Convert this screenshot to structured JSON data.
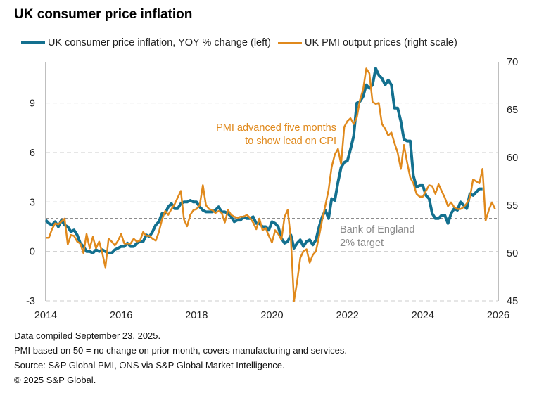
{
  "title": "UK consumer price inflation",
  "legend": {
    "cpi": "UK consumer price inflation, YOY % change (left)",
    "pmi": "UK PMI output prices (right scale)"
  },
  "colors": {
    "cpi": "#13708f",
    "pmi": "#e0891c",
    "target": "#666666",
    "grid": "#cccccc"
  },
  "annotations": {
    "pmi_line1": "PMI advanced five months",
    "pmi_line2": "to show lead on CPI",
    "boe_line1": "Bank of England",
    "boe_line2": "2% target"
  },
  "footer": [
    "Data compiled September 23, 2025.",
    "PMI based on 50 = no change on prior month, covers manufacturing and services.",
    "Source: S&P Global PMI, ONS via S&P Global Market Intelligence.",
    "© 2025 S&P Global."
  ],
  "chart_data": {
    "type": "line",
    "title": "UK consumer price inflation",
    "x_ticks": [
      "2014",
      "2016",
      "2018",
      "2020",
      "2022",
      "2024",
      "2026"
    ],
    "xlim": [
      "2014-01",
      "2026-01"
    ],
    "y_left": {
      "ticks": [
        "-3",
        "0",
        "3",
        "6",
        "9"
      ],
      "range": [
        -3,
        11.5
      ]
    },
    "y_right": {
      "ticks": [
        "45",
        "50",
        "55",
        "60",
        "65",
        "70"
      ],
      "range": [
        45,
        70
      ]
    },
    "grid": "horizontal dashed",
    "reference_line": {
      "axis": "left",
      "value": 2,
      "label": "Bank of England 2% target"
    },
    "series": [
      {
        "name": "UK consumer price inflation, YOY % change (left)",
        "axis": "left",
        "frequency": "monthly",
        "monthly_by_year": {
          "2014": [
            1.9,
            1.7,
            1.6,
            1.8,
            1.5,
            1.9,
            1.6,
            1.5,
            1.2,
            1.3,
            1.0,
            0.5
          ],
          "2015": [
            0.3,
            0.0,
            0.0,
            -0.1,
            0.1,
            0.0,
            0.1,
            0.0,
            -0.1,
            -0.1,
            0.1,
            0.2
          ],
          "2016": [
            0.3,
            0.3,
            0.5,
            0.3,
            0.3,
            0.5,
            0.6,
            0.6,
            1.0,
            0.9,
            1.2,
            1.6
          ],
          "2017": [
            1.8,
            2.3,
            2.3,
            2.7,
            2.9,
            2.6,
            2.6,
            2.9,
            3.0,
            3.0,
            3.1,
            3.0
          ],
          "2018": [
            3.0,
            2.7,
            2.5,
            2.4,
            2.4,
            2.4,
            2.5,
            2.7,
            2.4,
            2.4,
            2.3,
            2.1
          ],
          "2019": [
            1.8,
            1.9,
            1.9,
            2.1,
            2.0,
            2.0,
            2.1,
            1.7,
            1.7,
            1.5,
            1.5,
            1.3
          ],
          "2020": [
            1.8,
            1.7,
            1.5,
            0.8,
            0.5,
            0.6,
            1.0,
            0.2,
            0.5,
            0.7,
            0.3,
            0.6
          ],
          "2021": [
            0.7,
            0.4,
            0.7,
            1.5,
            2.1,
            2.5,
            2.0,
            3.2,
            3.1,
            4.2,
            5.1,
            5.4
          ],
          "2022": [
            5.5,
            6.2,
            7.0,
            9.0,
            9.1,
            9.4,
            10.1,
            9.9,
            10.1,
            11.1,
            10.7,
            10.5
          ],
          "2023": [
            10.1,
            10.4,
            10.1,
            8.7,
            8.7,
            7.9,
            6.8,
            6.7,
            6.7,
            4.6,
            3.9,
            4.0
          ],
          "2024": [
            4.0,
            3.4,
            3.2,
            2.3,
            2.0,
            2.0,
            2.2,
            2.2,
            1.7,
            2.3,
            2.6,
            2.5
          ],
          "2025": [
            3.0,
            2.8,
            2.6,
            3.5,
            3.4,
            3.6,
            3.8,
            3.8
          ]
        }
      },
      {
        "name": "UK PMI output prices (right scale)",
        "axis": "right",
        "frequency": "monthly",
        "monthly_by_year": {
          "2014": [
            51.6,
            51.6,
            52.5,
            53.1,
            53.0,
            53.3,
            53.6,
            50.9,
            51.9,
            51.8,
            51.2,
            51.0
          ],
          "2015": [
            50.0,
            52.0,
            50.5,
            51.7,
            50.5,
            51.2,
            50.0,
            48.5,
            51.5,
            51.2,
            50.8,
            51.3
          ],
          "2016": [
            52.0,
            51.0,
            51.0,
            51.0,
            51.5,
            51.2,
            51.3,
            52.2,
            51.8,
            51.8,
            51.5,
            51.3
          ],
          "2017": [
            52.2,
            53.5,
            54.4,
            54.0,
            54.6,
            55.1,
            55.8,
            56.5,
            53.5,
            52.8,
            54.0,
            54.5
          ],
          "2018": [
            54.6,
            55.0,
            57.1,
            55.0,
            54.6,
            54.5,
            54.2,
            54.4,
            54.2,
            53.2,
            54.5,
            54.0
          ],
          "2019": [
            53.8,
            53.7,
            53.8,
            53.8,
            54.0,
            53.7,
            53.2,
            52.5,
            53.6,
            52.4,
            52.6,
            51.8
          ],
          "2020": [
            51.1,
            52.4,
            52.0,
            51.4,
            53.8,
            54.5,
            51.5,
            45.0,
            47.0,
            49.5,
            50.2,
            50.4
          ],
          "2021": [
            49.0,
            49.8,
            50.2,
            51.8,
            53.5,
            55.0,
            56.6,
            59.0,
            60.3,
            60.9,
            59.3,
            63.2
          ],
          "2022": [
            63.8,
            64.1,
            63.5,
            64.2,
            66.0,
            67.1,
            69.3,
            68.8,
            65.8,
            65.6,
            65.7,
            63.5
          ],
          "2023": [
            63.0,
            62.3,
            62.6,
            61.5,
            60.5,
            58.8,
            61.3,
            59.5,
            57.9,
            57.3,
            56.2,
            55.9
          ],
          "2024": [
            55.9,
            56.5,
            57.1,
            57.0,
            56.2,
            57.2,
            56.5,
            55.8,
            54.9,
            55.3,
            54.8,
            54.6
          ],
          "2025": [
            54.6,
            54.8,
            55.2,
            55.8,
            57.7,
            57.5,
            57.3,
            58.8,
            53.4,
            54.5,
            55.3,
            54.6
          ]
        }
      }
    ]
  }
}
